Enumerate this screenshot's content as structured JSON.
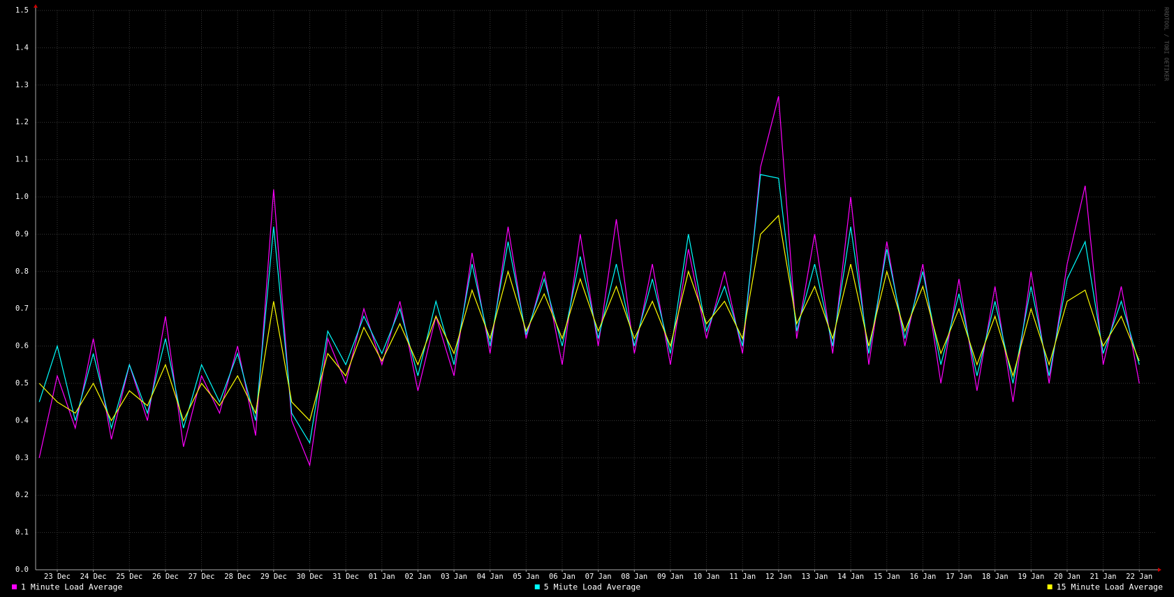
{
  "chart_data": {
    "type": "line",
    "watermark": "RRDTOOL / TOBI OETIKER",
    "x": [
      0.5,
      1,
      1.5,
      2,
      2.5,
      3,
      3.5,
      4,
      4.5,
      5,
      5.5,
      6,
      6.5,
      7,
      7.5,
      8,
      8.5,
      9,
      9.5,
      10,
      10.5,
      11,
      11.5,
      12,
      12.5,
      13,
      13.5,
      14,
      14.5,
      15,
      15.5,
      16,
      16.5,
      17,
      17.5,
      18,
      18.5,
      19,
      19.5,
      20,
      20.5,
      21,
      21.5,
      22,
      22.5,
      23,
      23.5,
      24,
      24.5,
      25,
      25.5,
      26,
      26.5,
      27,
      27.5,
      28,
      28.5,
      29,
      29.5,
      30,
      30.5,
      31
    ],
    "xlim": [
      0.4,
      31.44
    ],
    "xticks": [
      {
        "value": 1,
        "label": "23 Dec"
      },
      {
        "value": 2,
        "label": "24 Dec"
      },
      {
        "value": 3,
        "label": "25 Dec"
      },
      {
        "value": 4,
        "label": "26 Dec"
      },
      {
        "value": 5,
        "label": "27 Dec"
      },
      {
        "value": 6,
        "label": "28 Dec"
      },
      {
        "value": 7,
        "label": "29 Dec"
      },
      {
        "value": 8,
        "label": "30 Dec"
      },
      {
        "value": 9,
        "label": "31 Dec"
      },
      {
        "value": 10,
        "label": "01 Jan"
      },
      {
        "value": 11,
        "label": "02 Jan"
      },
      {
        "value": 12,
        "label": "03 Jan"
      },
      {
        "value": 13,
        "label": "04 Jan"
      },
      {
        "value": 14,
        "label": "05 Jan"
      },
      {
        "value": 15,
        "label": "06 Jan"
      },
      {
        "value": 16,
        "label": "07 Jan"
      },
      {
        "value": 17,
        "label": "08 Jan"
      },
      {
        "value": 18,
        "label": "09 Jan"
      },
      {
        "value": 19,
        "label": "10 Jan"
      },
      {
        "value": 20,
        "label": "11 Jan"
      },
      {
        "value": 21,
        "label": "12 Jan"
      },
      {
        "value": 22,
        "label": "13 Jan"
      },
      {
        "value": 23,
        "label": "14 Jan"
      },
      {
        "value": 24,
        "label": "15 Jan"
      },
      {
        "value": 25,
        "label": "16 Jan"
      },
      {
        "value": 26,
        "label": "17 Jan"
      },
      {
        "value": 27,
        "label": "18 Jan"
      },
      {
        "value": 28,
        "label": "19 Jan"
      },
      {
        "value": 29,
        "label": "20 Jan"
      },
      {
        "value": 30,
        "label": "21 Jan"
      },
      {
        "value": 31,
        "label": "22 Jan"
      }
    ],
    "ylim": [
      0,
      1.5
    ],
    "yticks": [
      {
        "value": 0,
        "label": "0.0"
      },
      0.1,
      0.2,
      0.3,
      0.4,
      0.5,
      0.6,
      0.7,
      0.8,
      0.9,
      {
        "value": 1,
        "label": "1.0"
      },
      1.1,
      1.2,
      1.3,
      1.4,
      1.5
    ],
    "grid": true,
    "legend": "bottom",
    "series": [
      {
        "name": "1 Minute Load Average",
        "color": "#ff00ff",
        "values": [
          0.3,
          0.52,
          0.38,
          0.62,
          0.35,
          0.55,
          0.4,
          0.68,
          0.33,
          0.52,
          0.42,
          0.6,
          0.36,
          1.02,
          0.4,
          0.28,
          0.62,
          0.5,
          0.7,
          0.55,
          0.72,
          0.48,
          0.68,
          0.52,
          0.85,
          0.58,
          0.92,
          0.62,
          0.8,
          0.55,
          0.9,
          0.6,
          0.94,
          0.58,
          0.82,
          0.55,
          0.86,
          0.62,
          0.8,
          0.58,
          1.08,
          1.27,
          0.62,
          0.9,
          0.58,
          1.0,
          0.55,
          0.88,
          0.6,
          0.82,
          0.5,
          0.78,
          0.48,
          0.76,
          0.45,
          0.8,
          0.5,
          0.82,
          1.03,
          0.55,
          0.76,
          0.5
        ]
      },
      {
        "name": "5 Miute Load Average",
        "color": "#00ffff",
        "values": [
          0.45,
          0.6,
          0.4,
          0.58,
          0.38,
          0.55,
          0.42,
          0.62,
          0.38,
          0.55,
          0.45,
          0.58,
          0.4,
          0.92,
          0.42,
          0.34,
          0.64,
          0.55,
          0.68,
          0.58,
          0.7,
          0.52,
          0.72,
          0.55,
          0.82,
          0.6,
          0.88,
          0.63,
          0.78,
          0.6,
          0.84,
          0.62,
          0.82,
          0.6,
          0.78,
          0.58,
          0.9,
          0.64,
          0.76,
          0.6,
          1.06,
          1.05,
          0.64,
          0.82,
          0.6,
          0.92,
          0.58,
          0.86,
          0.62,
          0.8,
          0.55,
          0.74,
          0.52,
          0.72,
          0.5,
          0.76,
          0.52,
          0.78,
          0.88,
          0.58,
          0.72,
          0.55
        ]
      },
      {
        "name": "15 Minute Load Average",
        "color": "#ffff00",
        "values": [
          0.5,
          0.45,
          0.42,
          0.5,
          0.4,
          0.48,
          0.44,
          0.55,
          0.4,
          0.5,
          0.44,
          0.52,
          0.42,
          0.72,
          0.45,
          0.4,
          0.58,
          0.52,
          0.65,
          0.56,
          0.66,
          0.55,
          0.68,
          0.58,
          0.75,
          0.62,
          0.8,
          0.64,
          0.74,
          0.62,
          0.78,
          0.64,
          0.76,
          0.62,
          0.72,
          0.6,
          0.8,
          0.66,
          0.72,
          0.62,
          0.9,
          0.95,
          0.66,
          0.76,
          0.62,
          0.82,
          0.6,
          0.8,
          0.64,
          0.76,
          0.58,
          0.7,
          0.55,
          0.68,
          0.52,
          0.7,
          0.55,
          0.72,
          0.75,
          0.6,
          0.68,
          0.56
        ]
      }
    ]
  }
}
